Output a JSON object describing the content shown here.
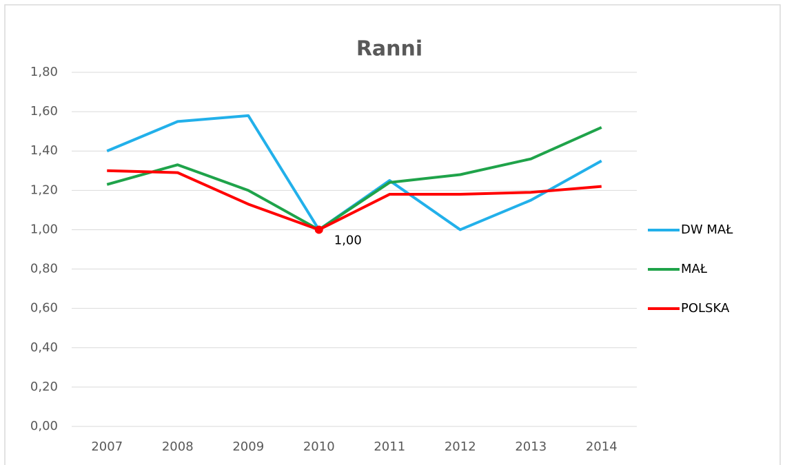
{
  "chart_data": {
    "type": "line",
    "title": "Ranni",
    "categories": [
      "2007",
      "2008",
      "2009",
      "2010",
      "2011",
      "2012",
      "2013",
      "2014"
    ],
    "series": [
      {
        "name": "DW MAŁ",
        "color": "#22b0ea",
        "values": [
          1.4,
          1.55,
          1.58,
          1.0,
          1.25,
          1.0,
          1.15,
          1.35
        ]
      },
      {
        "name": "MAŁ",
        "color": "#1fa34a",
        "values": [
          1.23,
          1.33,
          1.2,
          1.0,
          1.24,
          1.28,
          1.36,
          1.52
        ]
      },
      {
        "name": "POLSKA",
        "color": "#ff0000",
        "values": [
          1.3,
          1.29,
          1.13,
          1.0,
          1.18,
          1.18,
          1.19,
          1.22
        ],
        "value_labels": [
          null,
          null,
          null,
          "1,00",
          null,
          null,
          null,
          null
        ]
      }
    ],
    "ylim": [
      0,
      1.8
    ],
    "yticks": [
      {
        "value": 0,
        "label": "0,00"
      },
      {
        "value": 0.2,
        "label": "0,20"
      },
      {
        "value": 0.4,
        "label": "0,40"
      },
      {
        "value": 0.6,
        "label": "0,60"
      },
      {
        "value": 0.8,
        "label": "0,80"
      },
      {
        "value": 1.0,
        "label": "1,00"
      },
      {
        "value": 1.2,
        "label": "1,20"
      },
      {
        "value": 1.4,
        "label": "1,40"
      },
      {
        "value": 1.6,
        "label": "1,60"
      },
      {
        "value": 1.8,
        "label": "1,80"
      }
    ],
    "grid": true,
    "legend": "right"
  }
}
